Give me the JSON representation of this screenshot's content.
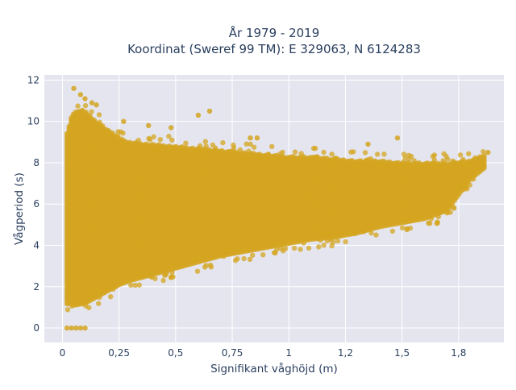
{
  "chart_data": {
    "type": "scatter",
    "title_line1": "År 1979 - 2019",
    "title_line2": "Koordinat (Sweref 99 TM): E 329063, N 6124283",
    "xlabel": "Signifikant våghöjd (m)",
    "ylabel": "Vågperiod (s)",
    "xlim": [
      -0.08,
      1.95
    ],
    "ylim": [
      -0.7,
      12.25
    ],
    "x_ticks": [
      0,
      0.25,
      0.5,
      0.75,
      1,
      1.25,
      1.5,
      1.75
    ],
    "x_tick_labels": [
      "0",
      "0,25",
      "0,5",
      "0,75",
      "1",
      "1,2",
      "1,5",
      "1,8"
    ],
    "y_ticks": [
      0,
      2,
      4,
      6,
      8,
      10,
      12
    ],
    "y_tick_labels": [
      "0",
      "2",
      "4",
      "6",
      "8",
      "10",
      "12"
    ],
    "grid": true,
    "colors": {
      "marker": "#d4a520",
      "plot_bg": "#e5e5f0",
      "grid": "#ffffff"
    },
    "series": [
      {
        "envelope": {
          "x": [
            0.02,
            0.05,
            0.1,
            0.15,
            0.2,
            0.25,
            0.3,
            0.4,
            0.5,
            0.6,
            0.7,
            0.8,
            0.9,
            1.0,
            1.1,
            1.2,
            1.3,
            1.4,
            1.5,
            1.6,
            1.7,
            1.8,
            1.87
          ],
          "y_low": [
            1.3,
            1.1,
            1.2,
            1.5,
            1.8,
            2.1,
            2.3,
            2.6,
            2.9,
            3.2,
            3.5,
            3.7,
            3.9,
            4.1,
            4.3,
            4.4,
            4.6,
            4.9,
            5.1,
            5.3,
            5.7,
            7.2,
            7.8
          ],
          "y_high": [
            9.5,
            10.5,
            10.5,
            10.0,
            9.6,
            9.2,
            9.0,
            8.9,
            8.8,
            8.7,
            8.6,
            8.5,
            8.4,
            8.3,
            8.3,
            8.2,
            8.1,
            8.1,
            8.0,
            8.0,
            8.0,
            8.1,
            8.4
          ]
        },
        "outliers": [
          [
            0.05,
            11.6
          ],
          [
            0.08,
            11.3
          ],
          [
            0.1,
            11.1
          ],
          [
            0.13,
            10.9
          ],
          [
            0.15,
            10.8
          ],
          [
            0.27,
            10.0
          ],
          [
            0.38,
            9.8
          ],
          [
            0.48,
            9.7
          ],
          [
            0.6,
            10.3
          ],
          [
            0.65,
            10.5
          ],
          [
            0.83,
            9.2
          ],
          [
            0.86,
            9.2
          ],
          [
            1.35,
            8.9
          ],
          [
            1.48,
            9.2
          ],
          [
            1.88,
            8.5
          ],
          [
            0.02,
            0.0
          ],
          [
            0.04,
            0.0
          ],
          [
            0.06,
            0.0
          ],
          [
            0.08,
            0.0
          ],
          [
            0.1,
            0.0
          ]
        ]
      }
    ]
  }
}
